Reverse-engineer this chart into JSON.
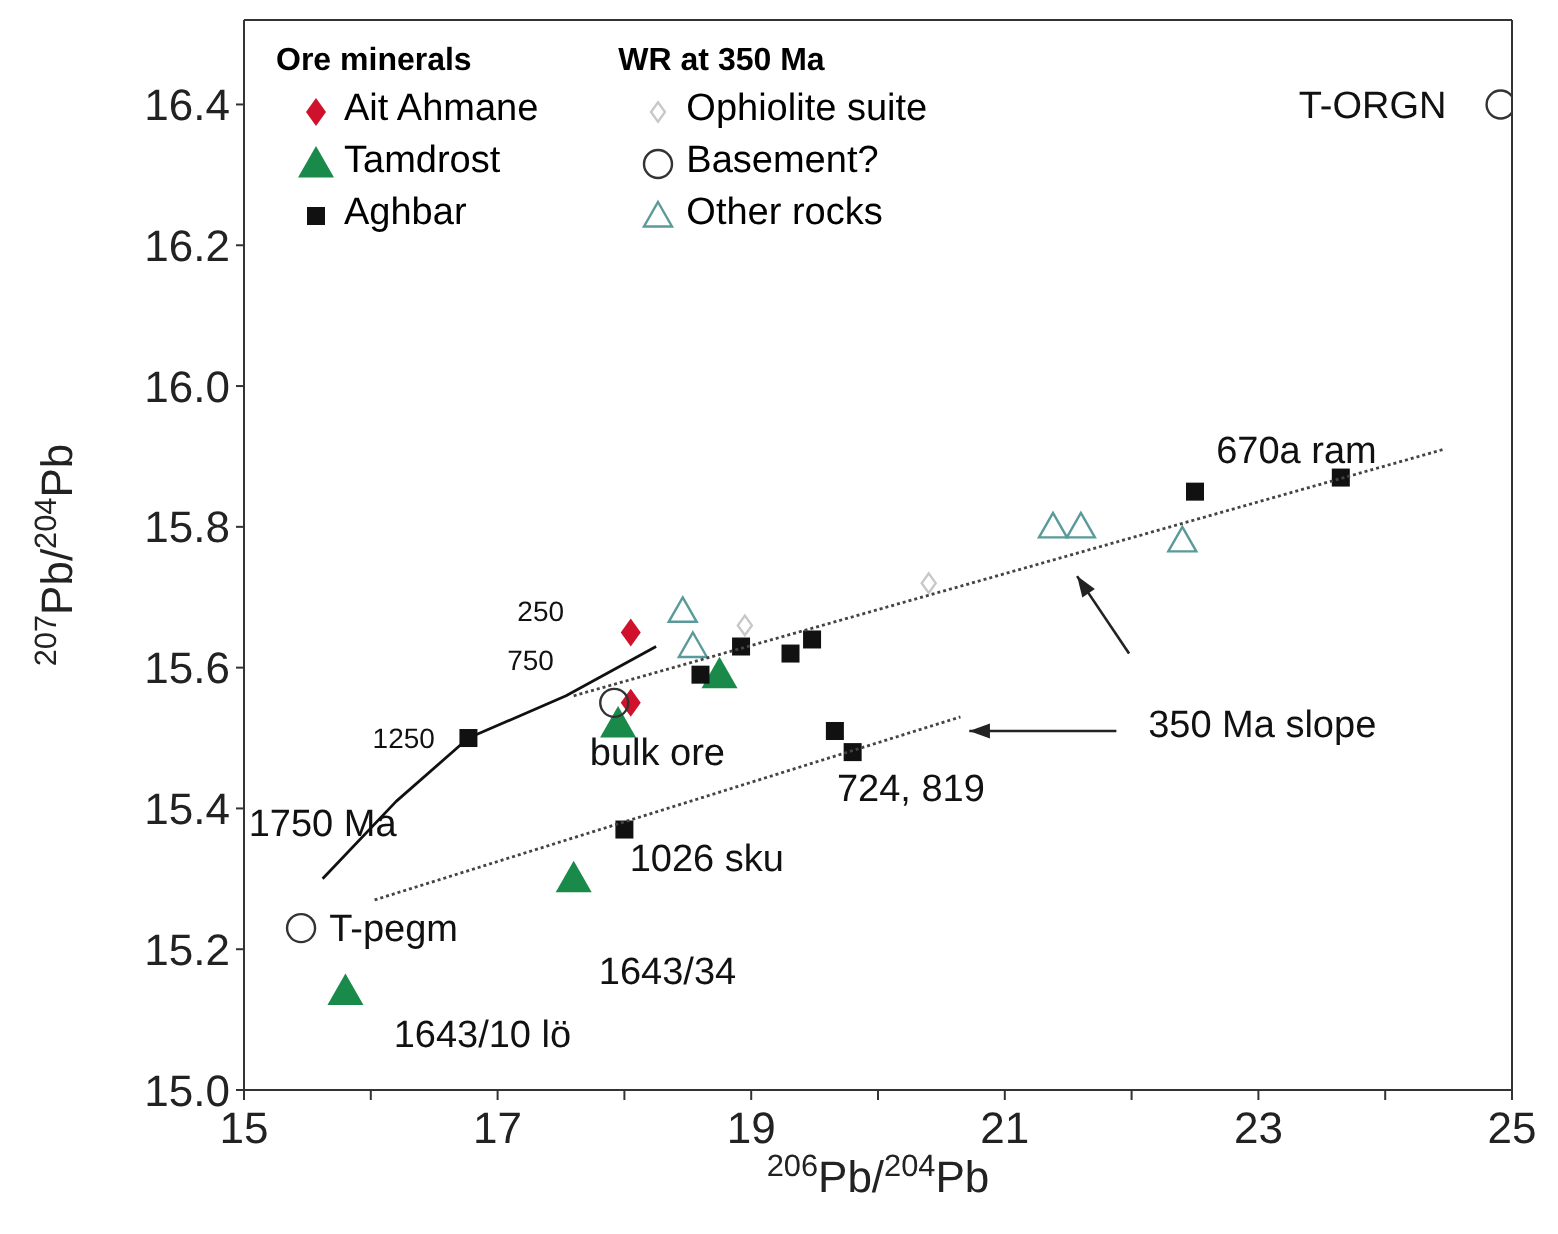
{
  "chart_data": {
    "type": "scatter",
    "xlabel": "$^{206}$Pb/$^{204}$Pb",
    "ylabel": "$^{207}$Pb/$^{204}$Pb",
    "legend_title": "Ore minerals",
    "xlim": [
      15,
      25
    ],
    "ylim": [
      15,
      16.52
    ],
    "xticks": [
      15,
      {
        "value": 16,
        "label": null
      },
      17,
      {
        "value": 18,
        "label": null
      },
      19,
      {
        "value": 20,
        "label": null
      },
      21,
      {
        "value": 22,
        "label": null
      },
      23,
      {
        "value": 24,
        "label": null
      },
      25
    ],
    "yticks": [
      {
        "value": 15,
        "label": "15.0"
      },
      15.2,
      15.4,
      15.6,
      15.8,
      {
        "value": 16,
        "label": "16.0"
      },
      16.2,
      16.4
    ],
    "grid": false,
    "legend": "top left",
    "series": [
      {
        "name": "Ait Ahmane",
        "color": "#d0112b",
        "marker": "diamond",
        "x": [
          18.05,
          18.05
        ],
        "values": [
          15.65,
          15.55
        ]
      },
      {
        "name": "Tamdrost",
        "color": "#1a8a4a",
        "marker": "triangle",
        "x": [
          18.75,
          17.95,
          17.6,
          15.8
        ],
        "values": [
          15.59,
          15.52,
          15.3,
          15.14
        ]
      },
      {
        "name": "Aghbar",
        "color": "#111111",
        "marker": "square",
        "x": [
          18.92,
          19.31,
          19.48,
          18.6,
          19.66,
          19.8,
          18.0,
          22.5,
          23.65,
          16.77
        ],
        "values": [
          15.63,
          15.62,
          15.64,
          15.59,
          15.51,
          15.48,
          15.37,
          15.85,
          15.87,
          15.5
        ]
      },
      {
        "name": "Ophiolite suite",
        "color": "#c8c8c8",
        "marker": "diamond",
        "x": [
          18.95,
          20.4
        ],
        "values": [
          15.66,
          15.72
        ]
      },
      {
        "name": "Basement?",
        "color": "#333333",
        "marker": "circle",
        "x": [
          24.91,
          15.45,
          17.92
        ],
        "values": [
          16.4,
          15.23,
          15.55
        ]
      },
      {
        "name": "Other rocks",
        "color": "#5a9a9a",
        "marker": "triangle",
        "x": [
          18.46,
          18.54,
          21.38,
          21.6,
          22.4
        ],
        "values": [
          15.68,
          15.63,
          15.8,
          15.8,
          15.78
        ]
      },
      {
        "type": "line",
        "color": "#111111",
        "line_style": "solid",
        "marker": "none",
        "x": [
          15.62,
          16.2,
          16.77,
          17.54,
          18.25
        ],
        "values": [
          15.3,
          15.41,
          15.5,
          15.56,
          15.63
        ]
      },
      {
        "type": "line",
        "color": "#444444",
        "line_style": "dotted",
        "marker": "none",
        "x": [
          17.6,
          24.46
        ],
        "values": [
          15.56,
          15.91
        ]
      },
      {
        "type": "line",
        "color": "#444444",
        "line_style": "dotted",
        "marker": "none",
        "x": [
          16.03,
          20.65
        ],
        "values": [
          15.27,
          15.53
        ]
      }
    ],
    "annotations": [
      "WR at 350 Ma",
      "250",
      "750",
      "1250",
      "1750 Ma",
      "670a ram",
      "bulk ore",
      "724, 819",
      "1026 sku",
      "T-pegm",
      "1643/34",
      "1643/10 lö",
      "T-ORGN",
      "350 Ma slope"
    ]
  }
}
